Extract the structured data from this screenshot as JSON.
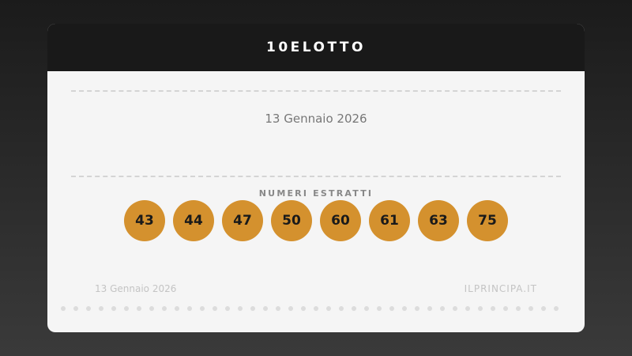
{
  "header": {
    "title": "10ELOTTO"
  },
  "draw": {
    "date": "13 Gennaio 2026",
    "label": "NUMERI ESTRATTI",
    "numbers": [
      "43",
      "44",
      "47",
      "50",
      "60",
      "61",
      "63",
      "75"
    ]
  },
  "footer": {
    "date": "13 Gennaio 2026",
    "site": "ILPRINCIPA.IT"
  },
  "colors": {
    "ball": "#d4912e",
    "header": "#191919",
    "card": "#f5f5f5"
  }
}
